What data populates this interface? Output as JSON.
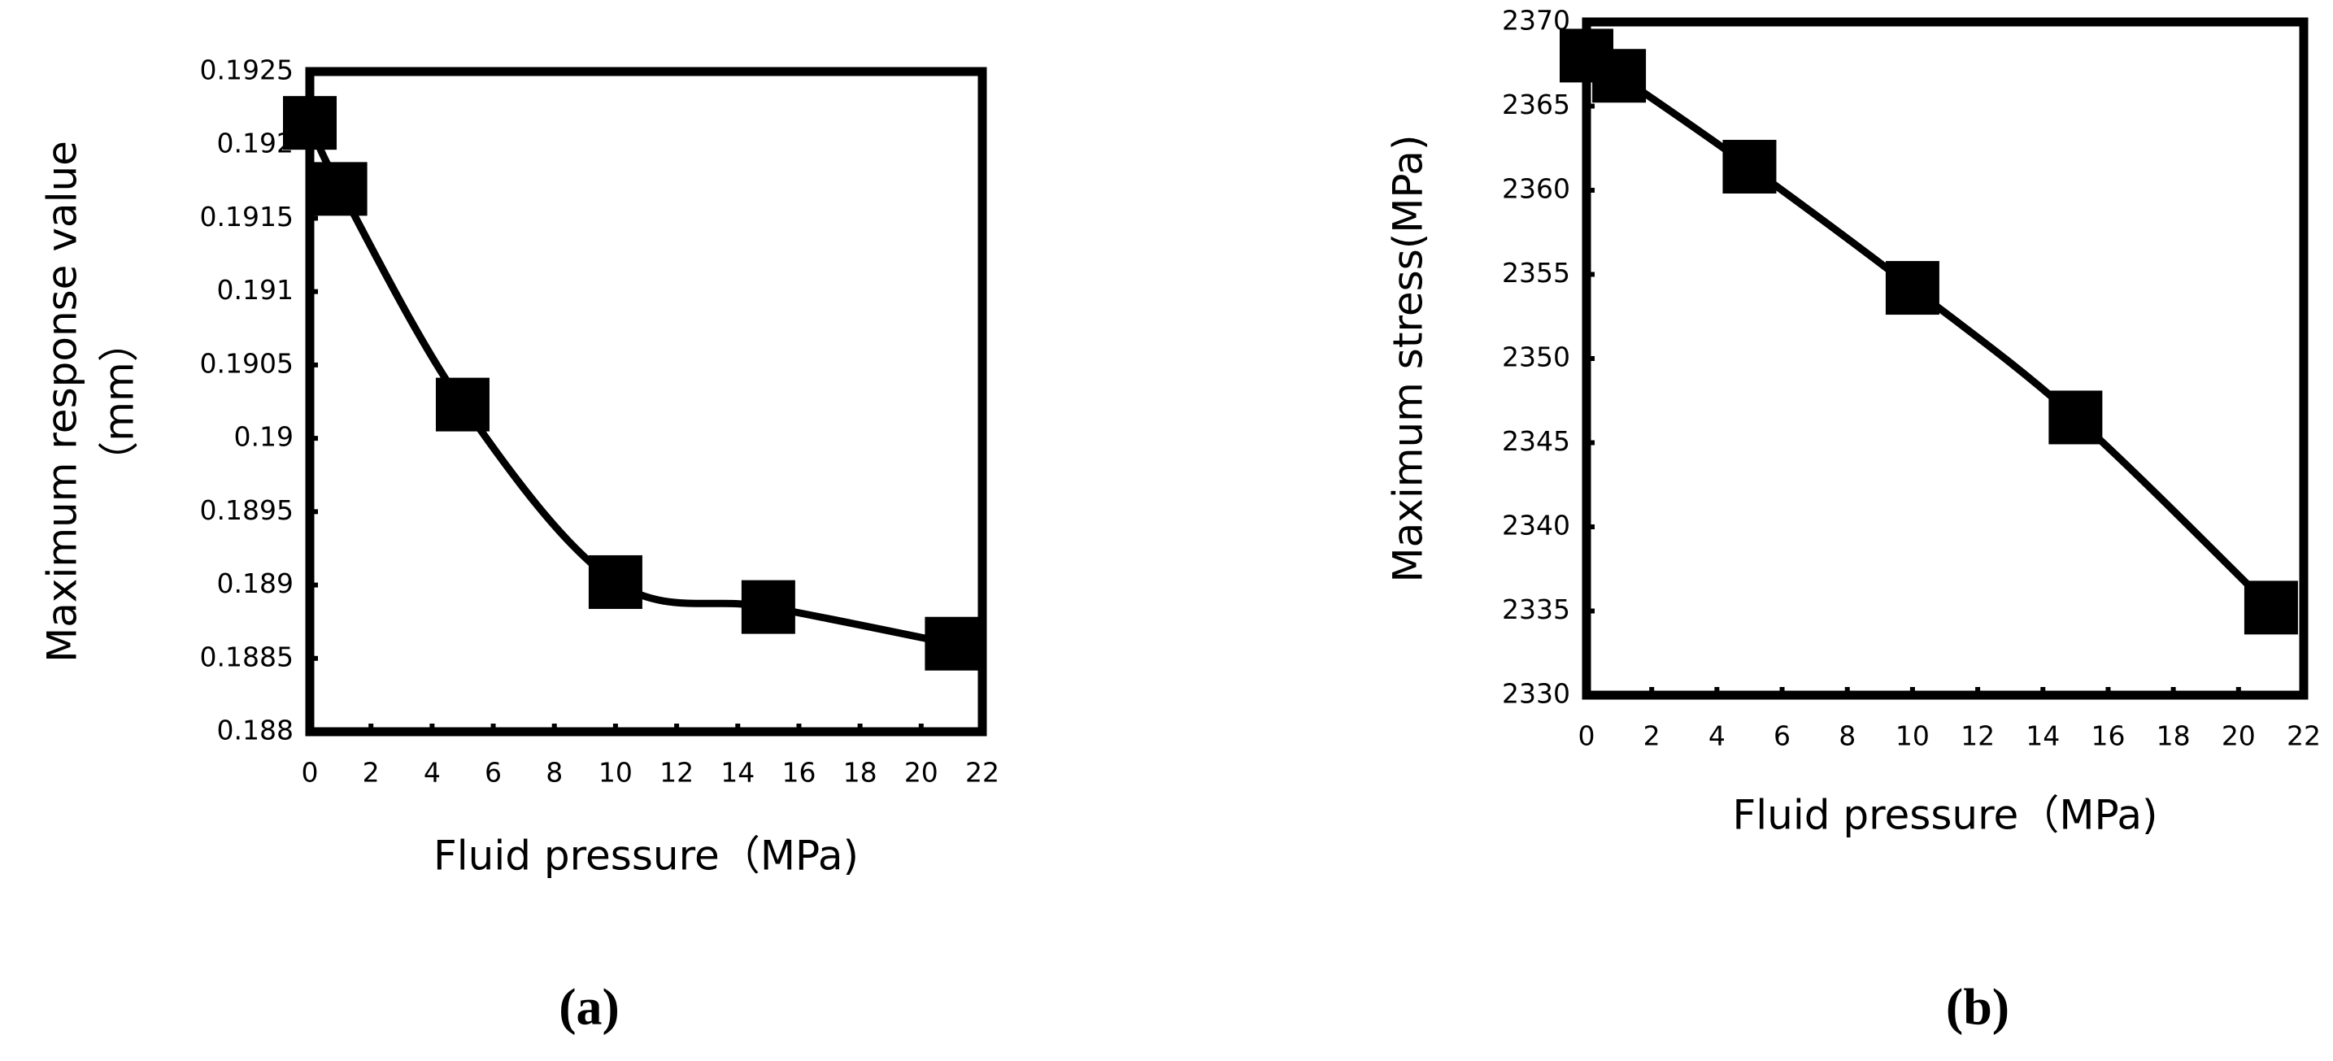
{
  "chart_data": [
    {
      "type": "line",
      "panel_label": "(a)",
      "xlabel": "Fluid pressure（MPa)",
      "ylabel": [
        "Maximum response value",
        "（mm）"
      ],
      "x": [
        0,
        1,
        5,
        10,
        15,
        21
      ],
      "series": [
        {
          "color": "#000000",
          "values": [
            0.19215,
            0.1917,
            0.19023,
            0.18902,
            0.18885,
            0.1886
          ]
        }
      ],
      "xlim": [
        0,
        22
      ],
      "xticks": [
        0,
        2,
        4,
        6,
        8,
        10,
        12,
        14,
        16,
        18,
        20,
        22
      ],
      "ylim": [
        0.188,
        0.1925
      ],
      "yticks": [
        0.188,
        0.1885,
        0.189,
        0.1895,
        0.19,
        0.1905,
        0.191,
        0.1915,
        0.192,
        0.1925
      ],
      "smooth": true,
      "marker": "square"
    },
    {
      "type": "line",
      "panel_label": "(b)",
      "xlabel": "Fluid pressure（MPa)",
      "ylabel": [
        "Maximum stress(MPa)"
      ],
      "x": [
        0,
        1,
        5,
        10,
        15,
        21
      ],
      "series": [
        {
          "color": "#000000",
          "values": [
            2368,
            2366.8,
            2361.4,
            2354.2,
            2346.5,
            2335.2
          ]
        }
      ],
      "xlim": [
        0,
        22
      ],
      "xticks": [
        0,
        2,
        4,
        6,
        8,
        10,
        12,
        14,
        16,
        18,
        20,
        22
      ],
      "ylim": [
        2330,
        2370
      ],
      "yticks": [
        2330,
        2335,
        2340,
        2345,
        2350,
        2355,
        2360,
        2365,
        2370
      ],
      "smooth": true,
      "marker": "square"
    }
  ]
}
